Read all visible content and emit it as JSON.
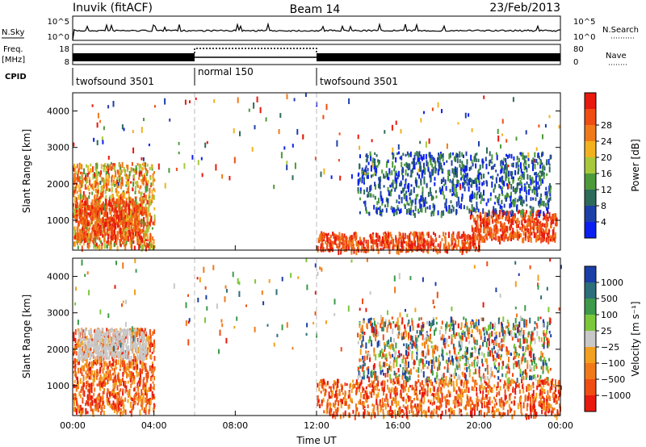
{
  "header": {
    "station": "Inuvik (fitACF)",
    "beam": "Beam 14",
    "date": "23/Feb/2013"
  },
  "status_panels": {
    "nsky_label": "N.Sky",
    "nsearch_label": "N.Search",
    "freq_label_1": "Freq.",
    "freq_label_2": "[MHz]",
    "nave_label": "Nave",
    "cpid_label": "CPID",
    "noise_ticks_left": [
      "10^5",
      "10^0"
    ],
    "noise_ticks_right": [
      "10^5",
      "10^0"
    ],
    "freq_ticks": [
      "18",
      "8"
    ],
    "nave_ticks": [
      "80",
      "0"
    ]
  },
  "cpid_segments": [
    {
      "label": "twofsound 3501",
      "start_hour": 0,
      "end_hour": 6
    },
    {
      "label": "normal 150",
      "start_hour": 6,
      "end_hour": 12
    },
    {
      "label": "twofsound 3501",
      "start_hour": 12,
      "end_hour": 24
    }
  ],
  "x_axis": {
    "label": "Time UT",
    "ticks": [
      "00:00",
      "04:00",
      "08:00",
      "12:00",
      "16:00",
      "20:00",
      "00:00"
    ]
  },
  "y_axis": {
    "label": "Slant Range [km]",
    "ticks": [
      "1000",
      "2000",
      "3000",
      "4000"
    ]
  },
  "power_colorbar": {
    "title": "Power [dB]",
    "ticks": [
      "4",
      "8",
      "12",
      "16",
      "20",
      "24",
      "28"
    ],
    "colors": [
      "#0b1ff2",
      "#1f3fa8",
      "#2e6b5a",
      "#4c9a3a",
      "#a8c83c",
      "#f2b21f",
      "#f07a1a",
      "#ef4d13",
      "#e8190e"
    ]
  },
  "velocity_colorbar": {
    "title": "Velocity [m s⁻¹]",
    "ticks": [
      "1000",
      "500",
      "100",
      "25",
      "−25",
      "−100",
      "−500",
      "−1000"
    ],
    "colors": [
      "#1b3fa8",
      "#2c6e7a",
      "#3c9a4a",
      "#7cc83a",
      "#c8c8c8",
      "#f2a01f",
      "#f07a1a",
      "#ef4d13",
      "#e8190e"
    ]
  },
  "chart_data": [
    {
      "type": "heatmap",
      "title": "Power [dB]",
      "xlabel": "Time UT",
      "ylabel": "Slant Range [km]",
      "xlim": [
        0,
        24
      ],
      "ylim": [
        180,
        4500
      ],
      "scale": [
        0,
        32
      ],
      "regions": [
        {
          "t0": 0.0,
          "t1": 4.0,
          "r0": 300,
          "r1": 2600,
          "level": "mid"
        },
        {
          "t0": 0.1,
          "t1": 3.5,
          "r0": 500,
          "r1": 1600,
          "level": "high"
        },
        {
          "t0": 12.0,
          "t1": 20.0,
          "r0": 200,
          "r1": 700,
          "level": "high"
        },
        {
          "t0": 19.5,
          "t1": 23.8,
          "r0": 500,
          "r1": 1300,
          "level": "high"
        },
        {
          "t0": 14.0,
          "t1": 23.5,
          "r0": 1200,
          "r1": 2900,
          "level": "low"
        }
      ]
    },
    {
      "type": "heatmap",
      "title": "Velocity [m s⁻¹]",
      "xlabel": "Time UT",
      "ylabel": "Slant Range [km]",
      "xlim": [
        0,
        24
      ],
      "ylim": [
        180,
        4500
      ],
      "scale": [
        -1000,
        1000
      ],
      "regions": [
        {
          "t0": 0.0,
          "t1": 4.0,
          "r0": 300,
          "r1": 2600,
          "level": "negative"
        },
        {
          "t0": 0.2,
          "t1": 3.6,
          "r0": 1800,
          "r1": 2600,
          "level": "near-zero"
        },
        {
          "t0": 12.0,
          "t1": 24.0,
          "r0": 200,
          "r1": 1200,
          "level": "negative"
        },
        {
          "t0": 14.0,
          "t1": 23.5,
          "r0": 1200,
          "r1": 2900,
          "level": "mixed"
        }
      ]
    }
  ]
}
